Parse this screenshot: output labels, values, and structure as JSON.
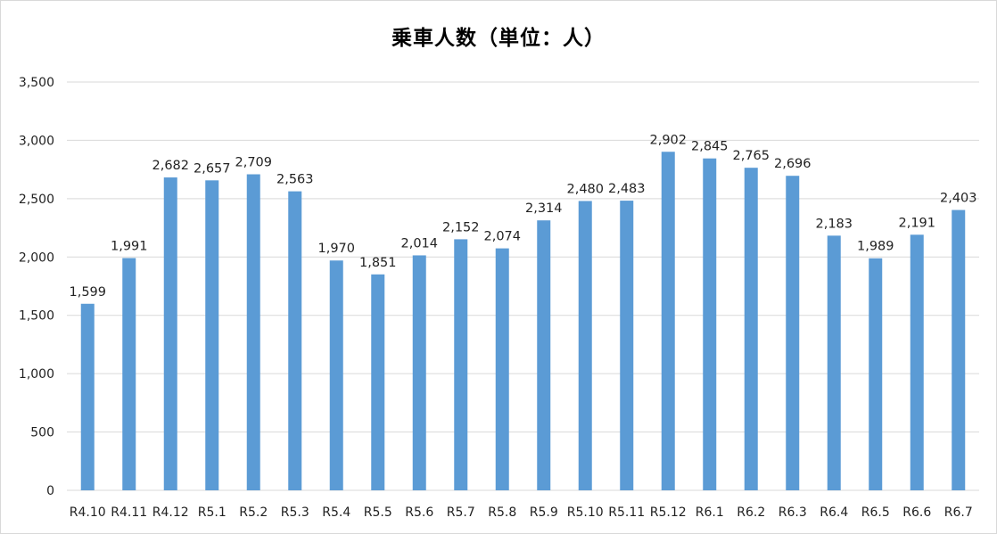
{
  "chart_data": {
    "type": "bar",
    "title": "乗車人数（単位：人）",
    "categories": [
      "R4.10",
      "R4.11",
      "R4.12",
      "R5.1",
      "R5.2",
      "R5.3",
      "R5.4",
      "R5.5",
      "R5.6",
      "R5.7",
      "R5.8",
      "R5.9",
      "R5.10",
      "R5.11",
      "R5.12",
      "R6.1",
      "R6.2",
      "R6.3",
      "R6.4",
      "R6.5",
      "R6.6",
      "R6.7"
    ],
    "values": [
      1599,
      1991,
      2682,
      2657,
      2709,
      2563,
      1970,
      1851,
      2014,
      2152,
      2074,
      2314,
      2480,
      2483,
      2902,
      2845,
      2765,
      2696,
      2183,
      1989,
      2191,
      2403
    ],
    "value_labels": [
      "1,599",
      "1,991",
      "2,682",
      "2,657",
      "2,709",
      "2,563",
      "1,970",
      "1,851",
      "2,014",
      "2,152",
      "2,074",
      "2,314",
      "2,480",
      "2,483",
      "2,902",
      "2,845",
      "2,765",
      "2,696",
      "2,183",
      "1,989",
      "2,191",
      "2,403"
    ],
    "yticks": [
      "0",
      "500",
      "1,000",
      "1,500",
      "2,000",
      "2,500",
      "3,000",
      "3,500"
    ],
    "ylim": [
      0,
      3500
    ],
    "grid": true,
    "legend": "none",
    "bar_color": "#5b9bd5",
    "grid_color": "#d9d9d9"
  }
}
